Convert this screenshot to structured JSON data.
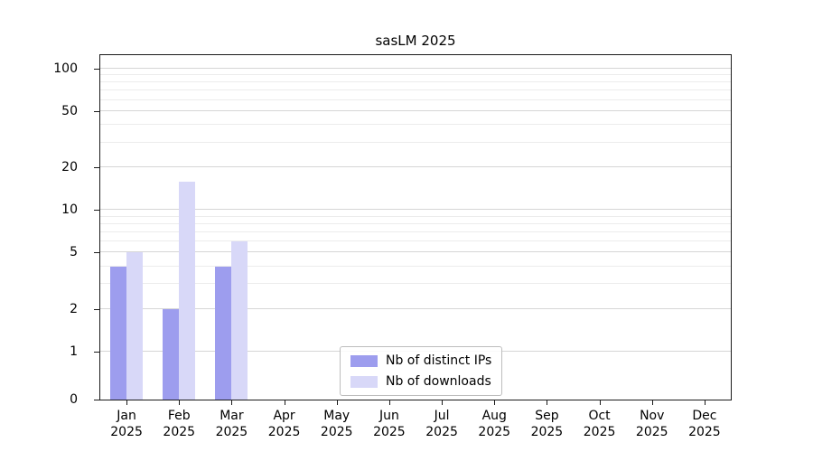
{
  "chart_data": {
    "type": "bar",
    "title": "sasLM 2025",
    "xlabel": "",
    "ylabel": "",
    "yscale": "symlog",
    "yticks": [
      0,
      1,
      2,
      5,
      10,
      20,
      50,
      100
    ],
    "ylim": [
      0,
      120
    ],
    "grid": true,
    "legend_position": "lower center",
    "categories": [
      {
        "month": "Jan",
        "year": "2025"
      },
      {
        "month": "Feb",
        "year": "2025"
      },
      {
        "month": "Mar",
        "year": "2025"
      },
      {
        "month": "Apr",
        "year": "2025"
      },
      {
        "month": "May",
        "year": "2025"
      },
      {
        "month": "Jun",
        "year": "2025"
      },
      {
        "month": "Jul",
        "year": "2025"
      },
      {
        "month": "Aug",
        "year": "2025"
      },
      {
        "month": "Sep",
        "year": "2025"
      },
      {
        "month": "Oct",
        "year": "2025"
      },
      {
        "month": "Nov",
        "year": "2025"
      },
      {
        "month": "Dec",
        "year": "2025"
      }
    ],
    "series": [
      {
        "name": "Nb of distinct IPs",
        "color": "#9d9dee",
        "values": [
          4,
          2,
          4,
          0,
          0,
          0,
          0,
          0,
          0,
          0,
          0,
          0
        ]
      },
      {
        "name": "Nb of downloads",
        "color": "#d8d8f8",
        "values": [
          5,
          16,
          6,
          0,
          0,
          0,
          0,
          0,
          0,
          0,
          0,
          0
        ]
      }
    ]
  }
}
